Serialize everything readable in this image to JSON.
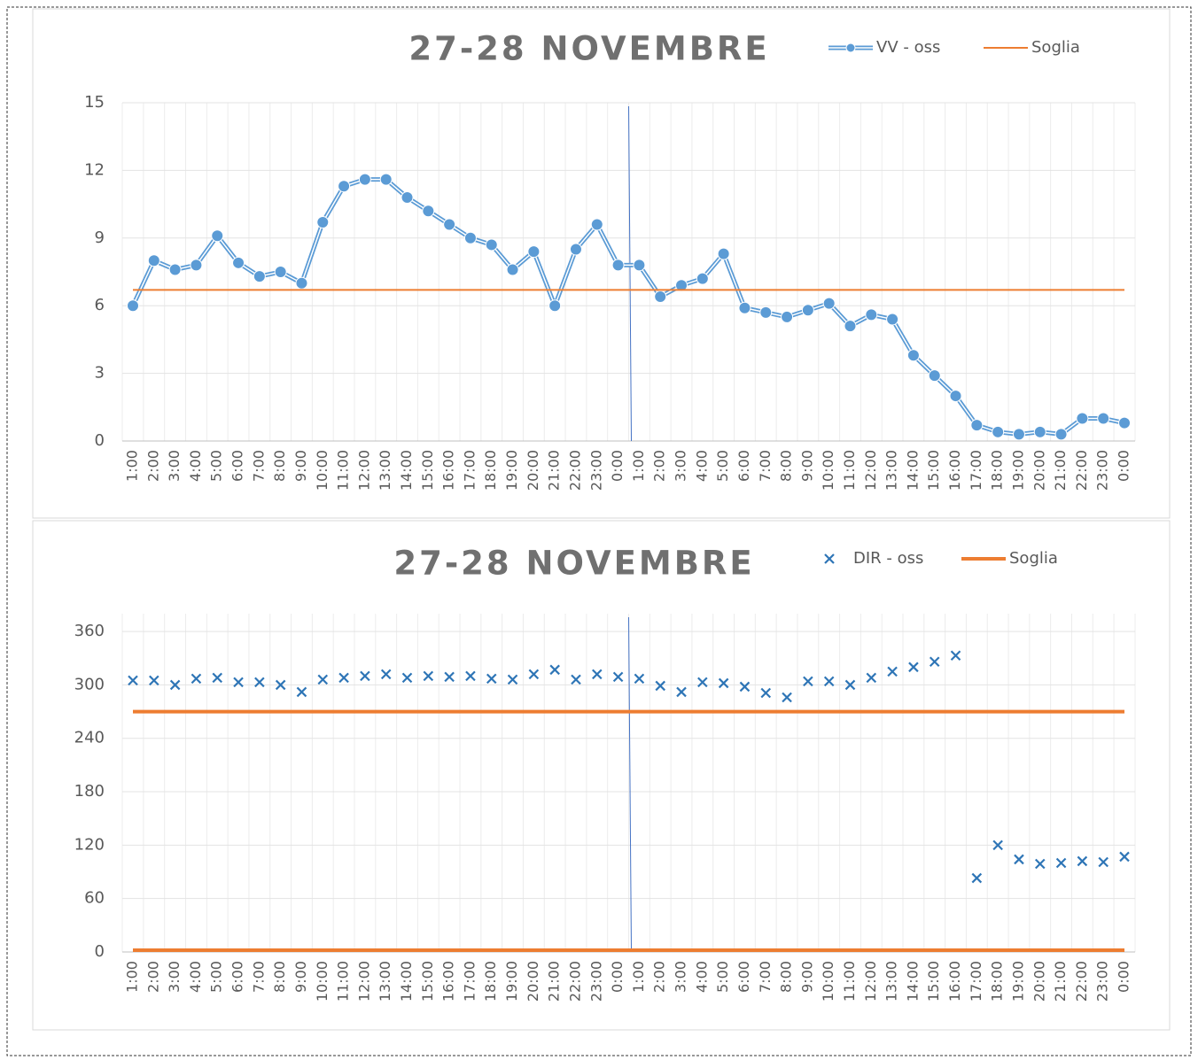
{
  "chart_data": [
    {
      "type": "line",
      "title": "27-28 NOVEMBRE",
      "categories": [
        "1:00",
        "2:00",
        "3:00",
        "4:00",
        "5:00",
        "6:00",
        "7:00",
        "8:00",
        "9:00",
        "10:00",
        "11:00",
        "12:00",
        "13:00",
        "14:00",
        "15:00",
        "16:00",
        "17:00",
        "18:00",
        "19:00",
        "20:00",
        "21:00",
        "22:00",
        "23:00",
        "0:00",
        "1:00",
        "2:00",
        "3:00",
        "4:00",
        "5:00",
        "6:00",
        "7:00",
        "8:00",
        "9:00",
        "10:00",
        "11:00",
        "12:00",
        "13:00",
        "14:00",
        "15:00",
        "16:00",
        "17:00",
        "18:00",
        "19:00",
        "20:00",
        "21:00",
        "22:00",
        "23:00",
        "0:00"
      ],
      "series": [
        {
          "name": "VV - oss",
          "color": "#5b9bd5",
          "marker": "circle",
          "values": [
            6.0,
            8.0,
            7.6,
            7.8,
            9.1,
            7.9,
            7.3,
            7.5,
            7.0,
            9.7,
            11.3,
            11.6,
            11.6,
            10.8,
            10.2,
            9.6,
            9.0,
            8.7,
            7.6,
            8.4,
            6.0,
            8.5,
            9.6,
            7.8,
            7.8,
            6.4,
            6.9,
            7.2,
            8.3,
            5.9,
            5.7,
            5.5,
            5.8,
            6.1,
            5.1,
            5.6,
            5.4,
            3.8,
            2.9,
            2.0,
            0.7,
            0.4,
            0.3,
            0.4,
            0.3,
            1.0,
            1.0,
            0.8
          ]
        },
        {
          "name": "Soglia",
          "color": "#ed7d31",
          "marker": "none",
          "width": 2,
          "values": [
            6.7,
            6.7,
            6.7,
            6.7,
            6.7,
            6.7,
            6.7,
            6.7,
            6.7,
            6.7,
            6.7,
            6.7,
            6.7,
            6.7,
            6.7,
            6.7,
            6.7,
            6.7,
            6.7,
            6.7,
            6.7,
            6.7,
            6.7,
            6.7,
            6.7,
            6.7,
            6.7,
            6.7,
            6.7,
            6.7,
            6.7,
            6.7,
            6.7,
            6.7,
            6.7,
            6.7,
            6.7,
            6.7,
            6.7,
            6.7,
            6.7,
            6.7,
            6.7,
            6.7,
            6.7,
            6.7,
            6.7,
            6.7
          ]
        }
      ],
      "ylim": [
        0,
        15
      ],
      "yticks": [
        0,
        3,
        6,
        9,
        12,
        15
      ],
      "grid": true
    },
    {
      "type": "scatter",
      "title": "27-28 NOVEMBRE",
      "categories": [
        "1:00",
        "2:00",
        "3:00",
        "4:00",
        "5:00",
        "6:00",
        "7:00",
        "8:00",
        "9:00",
        "10:00",
        "11:00",
        "12:00",
        "13:00",
        "14:00",
        "15:00",
        "16:00",
        "17:00",
        "18:00",
        "19:00",
        "20:00",
        "21:00",
        "22:00",
        "23:00",
        "0:00",
        "1:00",
        "2:00",
        "3:00",
        "4:00",
        "5:00",
        "6:00",
        "7:00",
        "8:00",
        "9:00",
        "10:00",
        "11:00",
        "12:00",
        "13:00",
        "14:00",
        "15:00",
        "16:00",
        "17:00",
        "18:00",
        "19:00",
        "20:00",
        "21:00",
        "22:00",
        "23:00",
        "0:00"
      ],
      "series": [
        {
          "name": "DIR - oss",
          "color": "#2e75b6",
          "marker": "x",
          "values": [
            305,
            305,
            300,
            307,
            308,
            303,
            303,
            300,
            292,
            306,
            308,
            310,
            312,
            308,
            310,
            309,
            310,
            307,
            306,
            312,
            317,
            306,
            312,
            309,
            307,
            299,
            292,
            303,
            302,
            298,
            291,
            286,
            304,
            304,
            300,
            308,
            315,
            320,
            326,
            333,
            83,
            120,
            104,
            99,
            100,
            102,
            101,
            107
          ]
        },
        {
          "name": "Soglia",
          "color": "#ed7d31",
          "marker": "none",
          "width": 4,
          "values": [
            270,
            270,
            270,
            270,
            270,
            270,
            270,
            270,
            270,
            270,
            270,
            270,
            270,
            270,
            270,
            270,
            270,
            270,
            270,
            270,
            270,
            270,
            270,
            270,
            270,
            270,
            270,
            270,
            270,
            270,
            270,
            270,
            270,
            270,
            270,
            270,
            270,
            270,
            270,
            270,
            270,
            270,
            270,
            270,
            270,
            270,
            270,
            270
          ]
        },
        {
          "color": "#ed7d31",
          "marker": "none",
          "width": 4,
          "values": [
            2,
            2,
            2,
            2,
            2,
            2,
            2,
            2,
            2,
            2,
            2,
            2,
            2,
            2,
            2,
            2,
            2,
            2,
            2,
            2,
            2,
            2,
            2,
            2,
            2,
            2,
            2,
            2,
            2,
            2,
            2,
            2,
            2,
            2,
            2,
            2,
            2,
            2,
            2,
            2,
            2,
            2,
            2,
            2,
            2,
            2,
            2,
            2
          ]
        }
      ],
      "ylim": [
        0,
        380
      ],
      "yticks": [
        0,
        60,
        120,
        180,
        240,
        300,
        360
      ],
      "grid": true
    }
  ]
}
